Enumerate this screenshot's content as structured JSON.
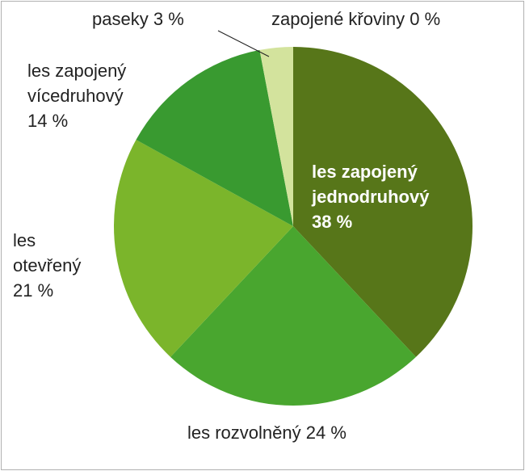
{
  "chart_data": {
    "type": "pie",
    "categories": [
      "les zapojený jednodruhový",
      "les rozvolněný",
      "les otevřený",
      "les zapojený vícedruhový",
      "paseky",
      "zapojené křoviny"
    ],
    "values": [
      38,
      24,
      21,
      14,
      3,
      0
    ],
    "value_labels": [
      "38 %",
      "24 %",
      "21 %",
      "14 %",
      "3 %",
      "0 %"
    ],
    "colors": [
      "#577619",
      "#49a62f",
      "#7bb52b",
      "#399a30",
      "#d3e39d",
      "#b9d98a"
    ]
  }
}
